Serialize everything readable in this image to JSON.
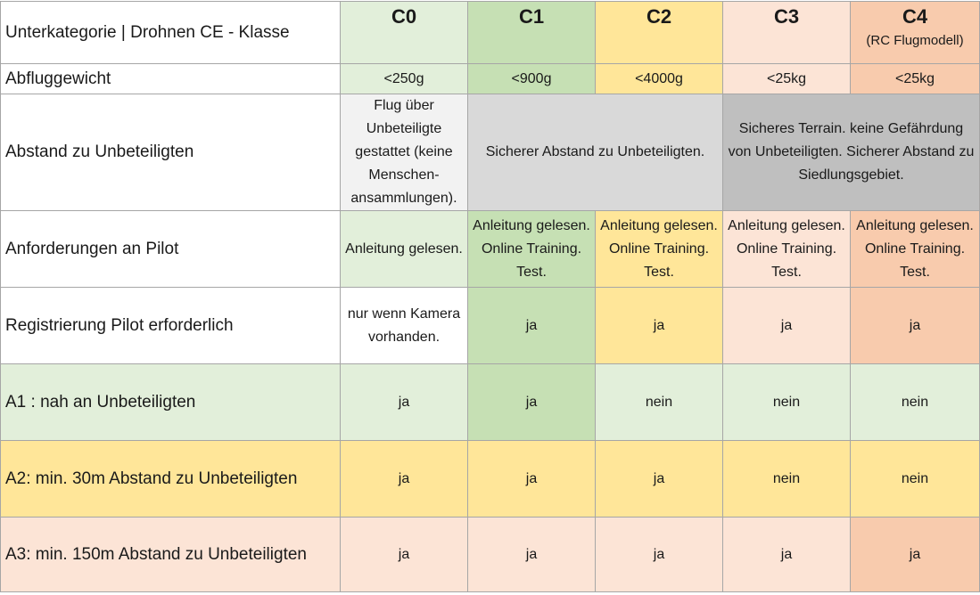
{
  "header": {
    "label": "Unterkategorie | Drohnen CE - Klasse",
    "classes": [
      {
        "code": "C0",
        "sub": ""
      },
      {
        "code": "C1",
        "sub": ""
      },
      {
        "code": "C2",
        "sub": ""
      },
      {
        "code": "C3",
        "sub": ""
      },
      {
        "code": "C4",
        "sub": "(RC Flugmodell)"
      }
    ]
  },
  "rows": {
    "weight": {
      "label": "Abfluggewicht",
      "c0": "<250g",
      "c1": "<900g",
      "c2": "<4000g",
      "c3": "<25kg",
      "c4": "<25kg"
    },
    "distance": {
      "label": "Abstand zu Unbeteiligten",
      "c0": "Flug über Unbeteiligte gestattet (keine Menschen-ansammlungen).",
      "c1_c2": "Sicherer Abstand zu Unbeteiligten.",
      "c3_c4": "Sicheres Terrain. keine Gefährdung von Unbeteiligten. Sicherer Abstand zu Siedlungsgebiet."
    },
    "pilot": {
      "label": "Anforderungen an Pilot",
      "c0": "Anleitung gelesen.",
      "c1": "Anleitung gelesen. Online Training. Test.",
      "c2": "Anleitung gelesen. Online Training. Test.",
      "c3": "Anleitung gelesen. Online Training. Test.",
      "c4": "Anleitung gelesen. Online Training. Test."
    },
    "registration": {
      "label": "Registrierung Pilot erforderlich",
      "c0": "nur wenn Kamera vorhanden.",
      "c1": "ja",
      "c2": "ja",
      "c3": "ja",
      "c4": "ja"
    },
    "a1": {
      "label": "A1 : nah an Unbeteiligten",
      "c0": "ja",
      "c1": "ja",
      "c2": "nein",
      "c3": "nein",
      "c4": "nein"
    },
    "a2": {
      "label": "A2: min. 30m Abstand zu Unbeteiligten",
      "c0": "ja",
      "c1": "ja",
      "c2": "ja",
      "c3": "nein",
      "c4": "nein"
    },
    "a3": {
      "label": "A3: min. 150m Abstand zu Unbeteiligten",
      "c0": "ja",
      "c1": "ja",
      "c2": "ja",
      "c3": "ja",
      "c4": "ja"
    }
  }
}
